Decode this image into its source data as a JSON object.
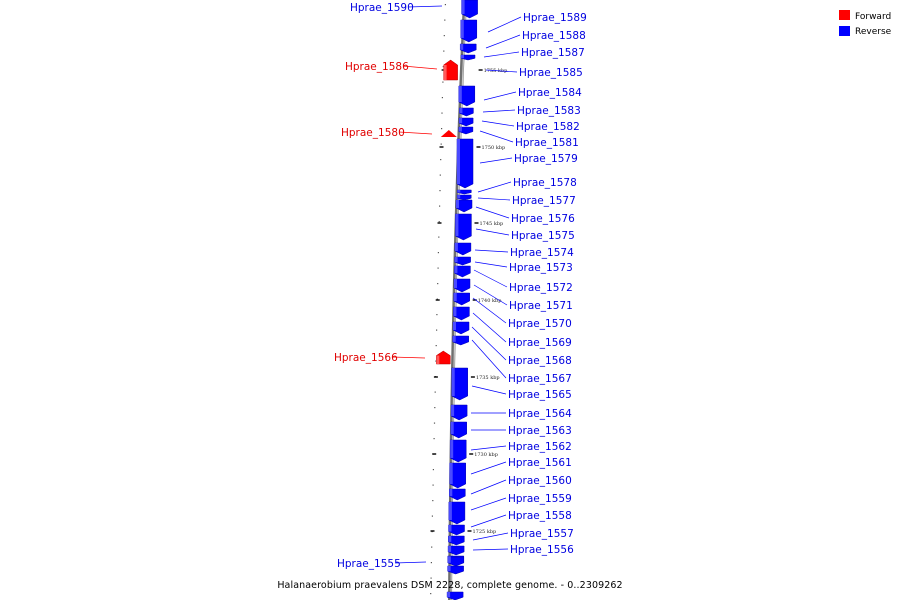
{
  "title": "Halanaerobium praevalens DSM 2228, complete genome. - 0..2309262",
  "legend": [
    {
      "label": "Forward",
      "color": "#ff0000"
    },
    {
      "label": "Reverse",
      "color": "#0000ff"
    }
  ],
  "colors": {
    "forward": "#ff0000",
    "reverse": "#0000ff",
    "backbone": "#888888"
  },
  "ticks": [
    "1755 kbp",
    "1750 kbp",
    "1745 kbp",
    "1740 kbp",
    "1735 kbp",
    "1730 kbp",
    "1725 kbp"
  ],
  "genes": [
    {
      "name": "Hprae_1590",
      "strand": "reverse"
    },
    {
      "name": "Hprae_1589",
      "strand": "reverse"
    },
    {
      "name": "Hprae_1588",
      "strand": "reverse"
    },
    {
      "name": "Hprae_1587",
      "strand": "reverse"
    },
    {
      "name": "Hprae_1586",
      "strand": "forward"
    },
    {
      "name": "Hprae_1585",
      "strand": "reverse"
    },
    {
      "name": "Hprae_1584",
      "strand": "reverse"
    },
    {
      "name": "Hprae_1583",
      "strand": "reverse"
    },
    {
      "name": "Hprae_1582",
      "strand": "reverse"
    },
    {
      "name": "Hprae_1580",
      "strand": "forward"
    },
    {
      "name": "Hprae_1581",
      "strand": "reverse"
    },
    {
      "name": "Hprae_1579",
      "strand": "reverse"
    },
    {
      "name": "Hprae_1578",
      "strand": "reverse"
    },
    {
      "name": "Hprae_1577",
      "strand": "reverse"
    },
    {
      "name": "Hprae_1576",
      "strand": "reverse"
    },
    {
      "name": "Hprae_1575",
      "strand": "reverse"
    },
    {
      "name": "Hprae_1574",
      "strand": "reverse"
    },
    {
      "name": "Hprae_1573",
      "strand": "reverse"
    },
    {
      "name": "Hprae_1572",
      "strand": "reverse"
    },
    {
      "name": "Hprae_1571",
      "strand": "reverse"
    },
    {
      "name": "Hprae_1570",
      "strand": "reverse"
    },
    {
      "name": "Hprae_1569",
      "strand": "reverse"
    },
    {
      "name": "Hprae_1568",
      "strand": "reverse"
    },
    {
      "name": "Hprae_1566",
      "strand": "forward"
    },
    {
      "name": "Hprae_1567",
      "strand": "reverse"
    },
    {
      "name": "Hprae_1565",
      "strand": "reverse"
    },
    {
      "name": "Hprae_1564",
      "strand": "reverse"
    },
    {
      "name": "Hprae_1563",
      "strand": "reverse"
    },
    {
      "name": "Hprae_1562",
      "strand": "reverse"
    },
    {
      "name": "Hprae_1561",
      "strand": "reverse"
    },
    {
      "name": "Hprae_1560",
      "strand": "reverse"
    },
    {
      "name": "Hprae_1559",
      "strand": "reverse"
    },
    {
      "name": "Hprae_1558",
      "strand": "reverse"
    },
    {
      "name": "Hprae_1557",
      "strand": "reverse"
    },
    {
      "name": "Hprae_1556",
      "strand": "reverse"
    },
    {
      "name": "Hprae_1555",
      "strand": "reverse"
    }
  ]
}
